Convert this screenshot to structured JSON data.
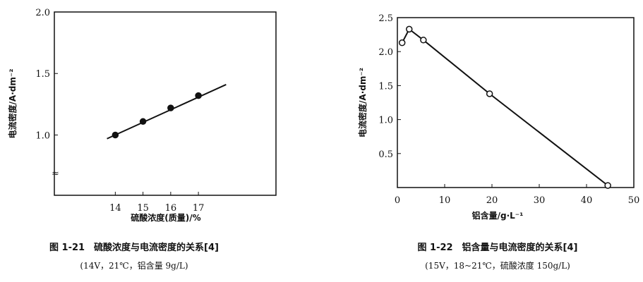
{
  "chart_data": [
    {
      "type": "line",
      "ylabel": "电流密度/A·dm⁻²",
      "xlabel": "硫酸浓度(质量)/%",
      "title": "图 1-21　硫酸浓度与电流密度的关系[4]",
      "subtitle": "(14V，21℃，铝含量 9g/L)",
      "x_ticks": [
        "14",
        "15",
        "16",
        "17"
      ],
      "x_tick_values": [
        14,
        15,
        16,
        17
      ],
      "y_ticks": [
        "2.0",
        "1.5",
        "1.0"
      ],
      "y_tick_values": [
        2.0,
        1.5,
        1.0
      ],
      "xlim": [
        11.8,
        19.8
      ],
      "ylim": [
        0.51,
        2.0
      ],
      "points": {
        "x": [
          14,
          15,
          16,
          17
        ],
        "y": [
          1.0,
          1.11,
          1.22,
          1.32
        ]
      },
      "fit_line": {
        "x": [
          13.7,
          18.0
        ],
        "y": [
          0.97,
          1.41
        ]
      },
      "marker": "filled-circle",
      "grid": false
    },
    {
      "type": "line",
      "ylabel": "电流密度/A·dm⁻²",
      "xlabel": "铝含量/g·L⁻¹",
      "title": "图 1-22　铝含量与电流密度的关系[4]",
      "subtitle": "(15V，18~21℃，硫酸浓度 150g/L)",
      "x_ticks": [
        "0",
        "10",
        "20",
        "30",
        "40",
        "50"
      ],
      "x_tick_values": [
        0,
        10,
        20,
        30,
        40,
        50
      ],
      "y_ticks": [
        "2.5",
        "2.0",
        "1.5",
        "1.0",
        "0.5"
      ],
      "y_tick_values": [
        2.5,
        2.0,
        1.5,
        1.0,
        0.5
      ],
      "xlim": [
        0,
        50
      ],
      "ylim": [
        0,
        2.5
      ],
      "points": {
        "x": [
          1,
          2.5,
          5.5,
          19.5,
          44.5
        ],
        "y": [
          2.13,
          2.33,
          2.17,
          1.38,
          0.03
        ]
      },
      "marker": "open-circle",
      "grid": false
    }
  ]
}
